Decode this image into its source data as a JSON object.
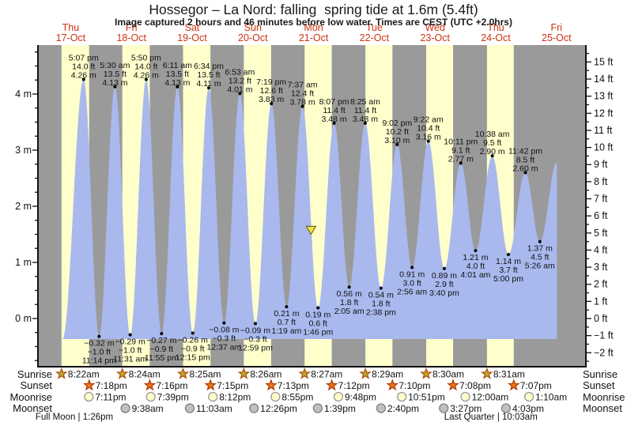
{
  "title": "Hossegor – La Nord: falling  spring tide at 1.6m (5.4ft)",
  "subtitle": "Image captured 2 hours and 46 minutes before low water. Times are CEST (UTC +2.0hrs)",
  "chart_data": {
    "type": "area",
    "title": "Hossegor – La Nord: falling  spring tide at 1.6m (5.4ft)",
    "subtitle": "Image captured 2 hours and 46 minutes before low water. Times are CEST (UTC +2.0hrs)",
    "days": [
      {
        "name": "Thu",
        "date": "17-Oct"
      },
      {
        "name": "Fri",
        "date": "18-Oct"
      },
      {
        "name": "Sat",
        "date": "19-Oct"
      },
      {
        "name": "Sun",
        "date": "20-Oct"
      },
      {
        "name": "Mon",
        "date": "21-Oct"
      },
      {
        "name": "Tue",
        "date": "22-Oct"
      },
      {
        "name": "Wed",
        "date": "23-Oct"
      },
      {
        "name": "Thu",
        "date": "24-Oct"
      },
      {
        "name": "Fri",
        "date": "25-Oct"
      }
    ],
    "y_axis_left": {
      "unit": "m",
      "min": -0.75,
      "max": 4.75,
      "tick_step": 0.25,
      "label_step": 1
    },
    "y_axis_right": {
      "unit": "ft",
      "min": -2.5,
      "max": 15.5,
      "tick_step": 0.5,
      "label_step": 1
    },
    "high_tides": [
      {
        "day": 0,
        "time": "5:07 pm",
        "height_m": 4.26,
        "height_ft": 14.0
      },
      {
        "day": 1,
        "time": "5:30 am",
        "height_m": 4.13,
        "height_ft": 13.5
      },
      {
        "day": 1,
        "time": "5:50 pm",
        "height_m": 4.26,
        "height_ft": 14.0
      },
      {
        "day": 2,
        "time": "6:11 am",
        "height_m": 4.13,
        "height_ft": 13.5
      },
      {
        "day": 2,
        "time": "6:34 pm",
        "height_m": 4.11,
        "height_ft": 13.5
      },
      {
        "day": 3,
        "time": "6:53 am",
        "height_m": 4.01,
        "height_ft": 13.2
      },
      {
        "day": 3,
        "time": "7:19 pm",
        "height_m": 3.83,
        "height_ft": 12.6
      },
      {
        "day": 4,
        "time": "7:37 am",
        "height_m": 3.78,
        "height_ft": 12.4
      },
      {
        "day": 4,
        "time": "8:07 pm",
        "height_m": 3.48,
        "height_ft": 11.4
      },
      {
        "day": 5,
        "time": "8:25 am",
        "height_m": 3.48,
        "height_ft": 11.4
      },
      {
        "day": 5,
        "time": "9:02 pm",
        "height_m": 3.1,
        "height_ft": 10.2
      },
      {
        "day": 6,
        "time": "9:22 am",
        "height_m": 3.16,
        "height_ft": 10.4
      },
      {
        "day": 6,
        "time": "10:11 pm",
        "height_m": 2.77,
        "height_ft": 9.1
      },
      {
        "day": 7,
        "time": "10:38 am",
        "height_m": 2.9,
        "height_ft": 9.5
      },
      {
        "day": 7,
        "time": "11:42 pm",
        "height_m": 2.6,
        "height_ft": 8.5
      }
    ],
    "low_tides": [
      {
        "day": 0,
        "time": "11:14 pm",
        "height_m": -0.32,
        "height_ft": -1.0
      },
      {
        "day": 1,
        "time": "11:31 am",
        "height_m": -0.29,
        "height_ft": -1.0
      },
      {
        "day": 1,
        "time": "11:55 pm",
        "height_m": -0.27,
        "height_ft": -0.9
      },
      {
        "day": 2,
        "time": "12:15 pm",
        "height_m": -0.26,
        "height_ft": -0.9
      },
      {
        "day": 3,
        "time": "12:37 am",
        "height_m": -0.08,
        "height_ft": -0.3
      },
      {
        "day": 3,
        "time": "12:59 pm",
        "height_m": -0.09,
        "height_ft": -0.3
      },
      {
        "day": 4,
        "time": "1:19 am",
        "height_m": 0.21,
        "height_ft": 0.7
      },
      {
        "day": 4,
        "time": "1:46 pm",
        "height_m": 0.19,
        "height_ft": 0.6
      },
      {
        "day": 5,
        "time": "2:05 am",
        "height_m": 0.56,
        "height_ft": 1.8
      },
      {
        "day": 5,
        "time": "2:38 pm",
        "height_m": 0.54,
        "height_ft": 1.8
      },
      {
        "day": 6,
        "time": "2:56 am",
        "height_m": 0.91,
        "height_ft": 3.0
      },
      {
        "day": 6,
        "time": "3:40 pm",
        "height_m": 0.89,
        "height_ft": 2.9
      },
      {
        "day": 7,
        "time": "4:01 am",
        "height_m": 1.21,
        "height_ft": 4.0
      },
      {
        "day": 7,
        "time": "5:00 pm",
        "height_m": 1.14,
        "height_ft": 3.7
      },
      {
        "day": 8,
        "time": "5:26 am",
        "height_m": 1.37,
        "height_ft": 4.5
      }
    ],
    "curve_start": {
      "day": 0,
      "time": "8:45 am",
      "height_m": -0.37
    },
    "curve_end": {
      "day": 8,
      "time": "12:10 pm",
      "height_m": 2.78
    },
    "current_marker": {
      "day": 4,
      "time": "11:00 am",
      "height_m": 1.6
    }
  },
  "astro": {
    "row_labels": [
      "Sunrise",
      "Sunset",
      "Moonrise",
      "Moonset"
    ],
    "sunrise": [
      {
        "day": 0,
        "time": "8:22am"
      },
      {
        "day": 1,
        "time": "8:24am"
      },
      {
        "day": 2,
        "time": "8:25am"
      },
      {
        "day": 3,
        "time": "8:26am"
      },
      {
        "day": 4,
        "time": "8:27am"
      },
      {
        "day": 5,
        "time": "8:29am"
      },
      {
        "day": 6,
        "time": "8:30am"
      },
      {
        "day": 7,
        "time": "8:31am"
      }
    ],
    "sunset": [
      {
        "day": 0,
        "time": "7:18pm"
      },
      {
        "day": 1,
        "time": "7:16pm"
      },
      {
        "day": 2,
        "time": "7:15pm"
      },
      {
        "day": 3,
        "time": "7:13pm"
      },
      {
        "day": 4,
        "time": "7:12pm"
      },
      {
        "day": 5,
        "time": "7:10pm"
      },
      {
        "day": 6,
        "time": "7:08pm"
      },
      {
        "day": 7,
        "time": "7:07pm"
      }
    ],
    "moonrise": [
      {
        "day": 0,
        "time": "7:11pm"
      },
      {
        "day": 1,
        "time": "7:39pm"
      },
      {
        "day": 2,
        "time": "8:12pm"
      },
      {
        "day": 3,
        "time": "8:55pm"
      },
      {
        "day": 4,
        "time": "9:48pm"
      },
      {
        "day": 5,
        "time": "10:51pm"
      },
      {
        "day": 7,
        "time": "12:00am"
      },
      {
        "day": 8,
        "time": "1:10am"
      }
    ],
    "moonset": [
      {
        "day": 1,
        "time": "9:38am"
      },
      {
        "day": 2,
        "time": "11:03am"
      },
      {
        "day": 3,
        "time": "12:26pm"
      },
      {
        "day": 4,
        "time": "1:39pm"
      },
      {
        "day": 5,
        "time": "2:40pm"
      },
      {
        "day": 6,
        "time": "3:27pm"
      },
      {
        "day": 7,
        "time": "4:03pm"
      }
    ],
    "moon_phases": [
      {
        "label": "Full Moon",
        "time": "1:26pm",
        "day": 0
      },
      {
        "label": "Last Quarter",
        "time": "10:03am",
        "day": 7
      }
    ]
  },
  "colors": {
    "day_band": "#ffffcc",
    "night_band": "#9a9a9a",
    "tide_fill": "#a9b9ee",
    "day_label": "#cc3311",
    "sunrise_star": "#b5aa2a",
    "sunrise_star_stroke": "#b05010",
    "sunset_star": "#e8751a",
    "sunset_star_stroke": "#b03a00",
    "moon_light": "#ffffcc",
    "moon_light_stroke": "#999999",
    "moon_dark": "#c0c0c0",
    "moon_dark_stroke": "#808080",
    "marker_fill": "#f0e340",
    "marker_stroke": "#6e6e1e",
    "axis": "#111111"
  }
}
